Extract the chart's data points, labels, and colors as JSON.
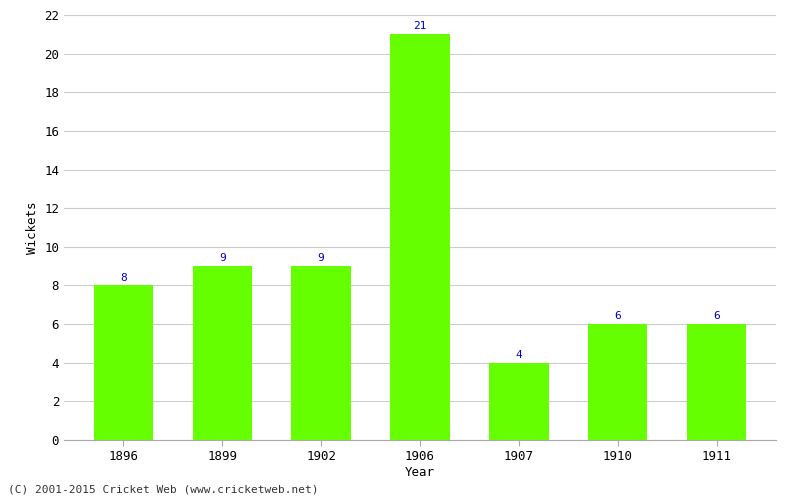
{
  "years": [
    "1896",
    "1899",
    "1902",
    "1906",
    "1907",
    "1910",
    "1911"
  ],
  "values": [
    8,
    9,
    9,
    21,
    4,
    6,
    6
  ],
  "bar_color": "#66ff00",
  "bar_edge_color": "#66ff00",
  "label_color": "#0000cc",
  "ylabel": "Wickets",
  "xlabel": "Year",
  "ylim": [
    0,
    22
  ],
  "yticks": [
    0,
    2,
    4,
    6,
    8,
    10,
    12,
    14,
    16,
    18,
    20,
    22
  ],
  "grid_color": "#cccccc",
  "background_color": "#ffffff",
  "footnote": "(C) 2001-2015 Cricket Web (www.cricketweb.net)",
  "label_fontsize": 8,
  "axis_fontsize": 9,
  "footnote_fontsize": 8,
  "bar_width": 0.6
}
